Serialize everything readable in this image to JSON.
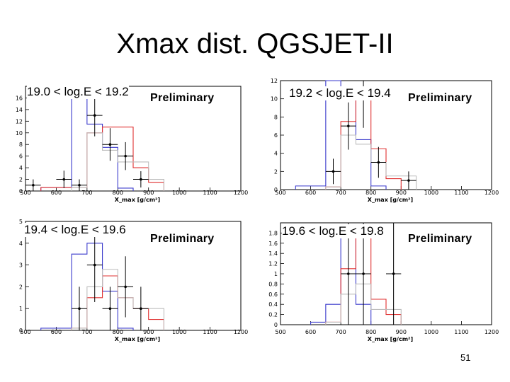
{
  "slide": {
    "title": "Xmax dist. QGSJET-II",
    "page_number": "51"
  },
  "colors": {
    "blue": "#3a3acc",
    "red": "#e03030",
    "light": "#bdbdbd",
    "points": "#000000"
  },
  "chart_data": [
    {
      "type": "bar",
      "label": "19.0 < log.E < 19.2",
      "annotation": "Preliminary",
      "xlabel": "X_max [g/cm²]",
      "xlim": [
        500,
        1200
      ],
      "ylim": [
        0,
        18
      ],
      "xticks": [
        "500",
        "600",
        "700",
        "800",
        "900",
        "1000",
        "1100",
        "1200"
      ],
      "yticks": [
        "0",
        "2",
        "4",
        "6",
        "8",
        "10",
        "12",
        "14",
        "16"
      ],
      "series": [
        {
          "name": "blue",
          "edges": [
            550,
            650,
            700,
            750,
            800,
            850
          ],
          "values": [
            0.6,
            16,
            11.5,
            7.5,
            0.5
          ]
        },
        {
          "name": "red",
          "edges": [
            550,
            700,
            750,
            850,
            900,
            950
          ],
          "values": [
            0.6,
            10,
            11,
            4,
            1.5
          ]
        },
        {
          "name": "light",
          "edges": [
            650,
            700,
            750,
            800,
            900,
            950
          ],
          "values": [
            0.6,
            10,
            7,
            5,
            2
          ]
        }
      ],
      "points": [
        {
          "x": 525,
          "y": 1,
          "err": 1
        },
        {
          "x": 625,
          "y": 2,
          "err": 1.5
        },
        {
          "x": 675,
          "y": 1,
          "err": 1
        },
        {
          "x": 725,
          "y": 13,
          "err": 3.6
        },
        {
          "x": 775,
          "y": 8,
          "err": 2.8
        },
        {
          "x": 825,
          "y": 6,
          "err": 2.4
        },
        {
          "x": 875,
          "y": 2,
          "err": 1.4
        }
      ]
    },
    {
      "type": "bar",
      "label": "19.2 < log.E < 19.4",
      "annotation": "Preliminary",
      "xlabel": "X_max [g/cm²]",
      "xlim": [
        500,
        1200
      ],
      "ylim": [
        0,
        12
      ],
      "xticks": [
        "500",
        "600",
        "700",
        "800",
        "900",
        "1000",
        "1100",
        "1200"
      ],
      "yticks": [
        "0",
        "2",
        "4",
        "6",
        "8",
        "10",
        "12"
      ],
      "series": [
        {
          "name": "blue",
          "edges": [
            550,
            650,
            700,
            750,
            800,
            850
          ],
          "values": [
            0.4,
            12,
            10.5,
            5.5,
            0.4
          ]
        },
        {
          "name": "red",
          "edges": [
            650,
            700,
            750,
            800,
            850,
            900
          ],
          "values": [
            0.3,
            7.5,
            10,
            4.5,
            1.2
          ]
        },
        {
          "name": "light",
          "edges": [
            650,
            700,
            750,
            800,
            850,
            950
          ],
          "values": [
            0.3,
            6,
            5,
            3,
            1.5
          ]
        }
      ],
      "points": [
        {
          "x": 675,
          "y": 2,
          "err": 1.4
        },
        {
          "x": 725,
          "y": 7,
          "err": 2.6
        },
        {
          "x": 775,
          "y": 10,
          "err": 3.2
        },
        {
          "x": 825,
          "y": 3,
          "err": 1.7
        },
        {
          "x": 925,
          "y": 1,
          "err": 1
        }
      ]
    },
    {
      "type": "bar",
      "label": "19.4 < log.E < 19.6",
      "annotation": "Preliminary",
      "xlabel": "X_max [g/cm²]",
      "xlim": [
        500,
        1200
      ],
      "ylim": [
        0,
        5
      ],
      "xticks": [
        "500",
        "600",
        "700",
        "800",
        "900",
        "1000",
        "1100",
        "1200"
      ],
      "yticks": [
        "0",
        "1",
        "2",
        "3",
        "4",
        "5"
      ],
      "series": [
        {
          "name": "blue",
          "edges": [
            550,
            650,
            700,
            750,
            800,
            850
          ],
          "values": [
            0.1,
            3.5,
            4,
            1.8,
            0.1
          ]
        },
        {
          "name": "red",
          "edges": [
            650,
            700,
            750,
            800,
            850,
            900,
            950
          ],
          "values": [
            0.1,
            1.5,
            2.5,
            1.5,
            1,
            0.5
          ]
        },
        {
          "name": "light",
          "edges": [
            650,
            700,
            750,
            800,
            850,
            950
          ],
          "values": [
            0.1,
            2,
            2.8,
            1.5,
            1
          ]
        }
      ],
      "points": [
        {
          "x": 675,
          "y": 1,
          "err": 1
        },
        {
          "x": 725,
          "y": 3,
          "err": 1.7
        },
        {
          "x": 775,
          "y": 1,
          "err": 1
        },
        {
          "x": 825,
          "y": 2,
          "err": 1.4
        },
        {
          "x": 875,
          "y": 1,
          "err": 1
        }
      ]
    },
    {
      "type": "bar",
      "label": "19.6 < log.E < 19.8",
      "annotation": "Preliminary",
      "xlabel": "X_max [g/cm²]",
      "xlim": [
        500,
        1200
      ],
      "ylim": [
        0,
        2
      ],
      "xticks": [
        "500",
        "600",
        "700",
        "800",
        "900",
        "1000",
        "1100",
        "1200"
      ],
      "yticks": [
        "0",
        "0.2",
        "0.4",
        "0.6",
        "0.8",
        "1",
        "1.2",
        "1.4",
        "1.6",
        "1.8"
      ],
      "series": [
        {
          "name": "blue",
          "edges": [
            600,
            650,
            700,
            750,
            800
          ],
          "values": [
            0.05,
            0.4,
            1.9,
            0.4
          ]
        },
        {
          "name": "red",
          "edges": [
            650,
            700,
            750,
            800,
            850,
            900
          ],
          "values": [
            0.05,
            1.1,
            1.9,
            0.5,
            0.2
          ]
        },
        {
          "name": "light",
          "edges": [
            650,
            700,
            750,
            800,
            900
          ],
          "values": [
            0.05,
            0.6,
            0.8,
            0.3
          ]
        }
      ],
      "points": [
        {
          "x": 725,
          "y": 1,
          "err": 1
        },
        {
          "x": 775,
          "y": 1,
          "err": 1
        },
        {
          "x": 875,
          "y": 1,
          "err": 1
        }
      ]
    }
  ]
}
